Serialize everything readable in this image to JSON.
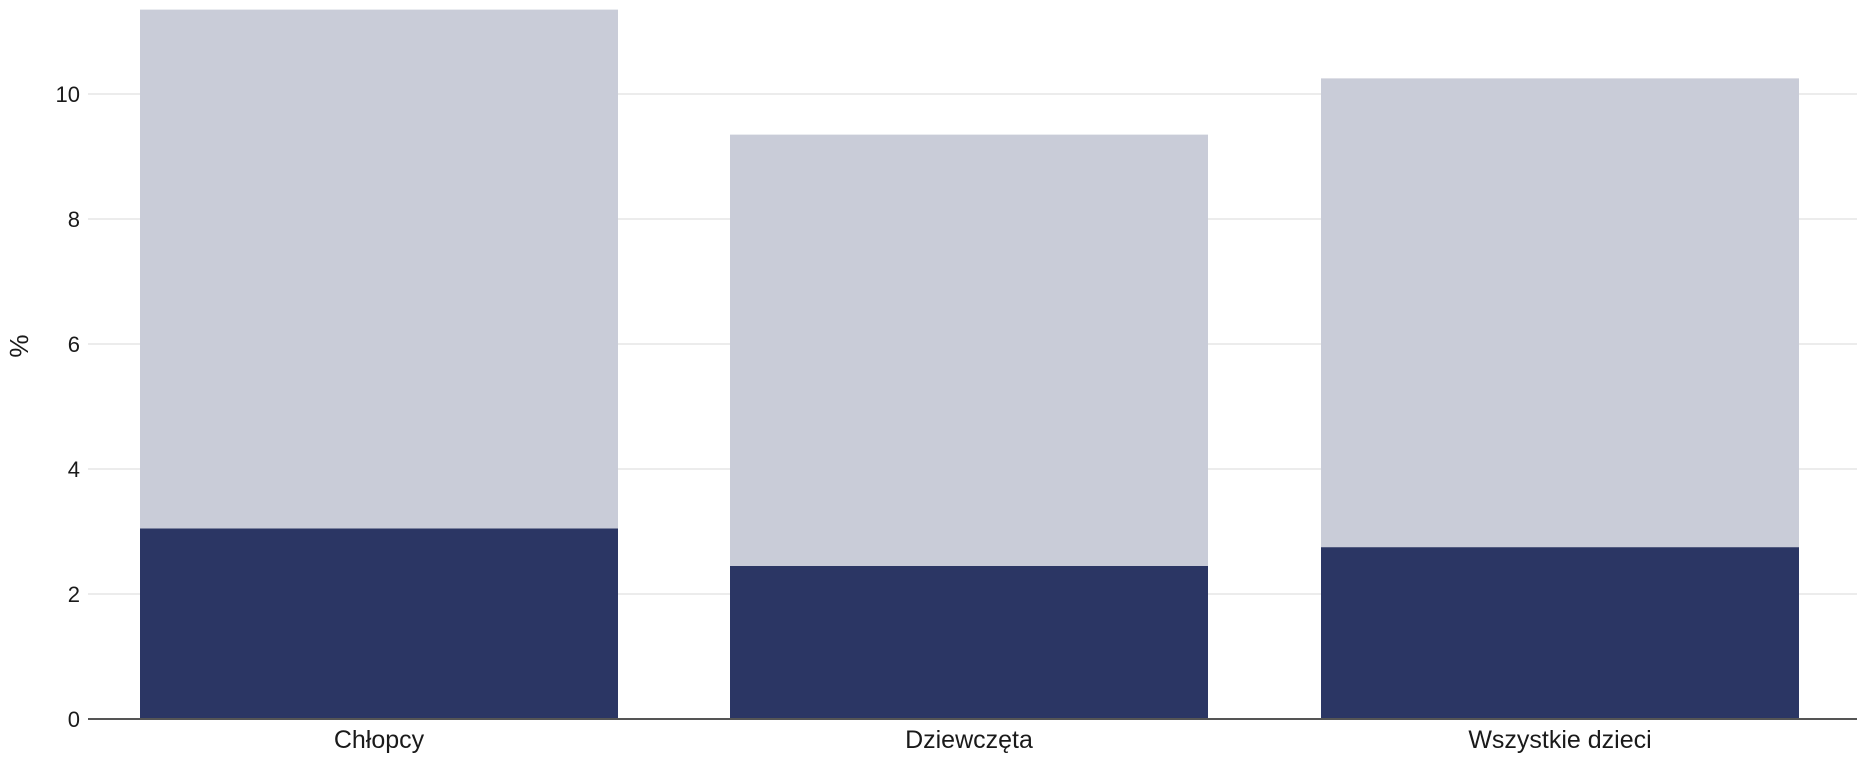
{
  "chart_data": {
    "type": "bar",
    "stacked": true,
    "categories": [
      "Chłopcy",
      "Dziewczęta",
      "Wszystkie dzieci"
    ],
    "series": [
      {
        "values": [
          3.05,
          2.45,
          2.75
        ],
        "color": "#2b3664"
      },
      {
        "values": [
          8.3,
          6.9,
          7.5
        ],
        "color": "#c9ccd8"
      }
    ],
    "ylabel": "%",
    "ylim": [
      0,
      11.5
    ],
    "yticks": [
      0,
      2,
      4,
      6,
      8,
      10
    ],
    "grid": true
  }
}
